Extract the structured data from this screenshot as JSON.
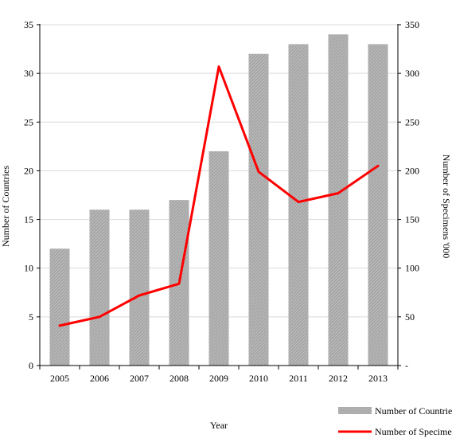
{
  "chart_data": {
    "type": "bar+line",
    "title": "",
    "xlabel": "Year",
    "ylabel_left": "Number of Countries",
    "ylabel_right": "Number of Specimens '000",
    "categories": [
      "2005",
      "2006",
      "2007",
      "2008",
      "2009",
      "2010",
      "2011",
      "2012",
      "2013"
    ],
    "ylim_left": [
      0,
      35
    ],
    "yticks_left": [
      "0",
      "5",
      "10",
      "15",
      "20",
      "25",
      "30",
      "35"
    ],
    "ylim_right": [
      0,
      350
    ],
    "yticks_right": [
      "-",
      "50",
      "100",
      "150",
      "200",
      "250",
      "300",
      "350"
    ],
    "grid": true,
    "legend_placement": "bottom-right",
    "series": [
      {
        "name": "Number of Countries",
        "type": "bar",
        "axis": "left",
        "color": "#a6a6a6",
        "values": [
          12,
          16,
          16,
          17,
          22,
          32,
          33,
          34,
          33
        ]
      },
      {
        "name": "Number of Specimens",
        "type": "line",
        "axis": "right",
        "color": "#ff0000",
        "values": [
          41,
          50,
          72,
          84,
          307,
          199,
          168,
          177,
          205
        ]
      }
    ]
  }
}
